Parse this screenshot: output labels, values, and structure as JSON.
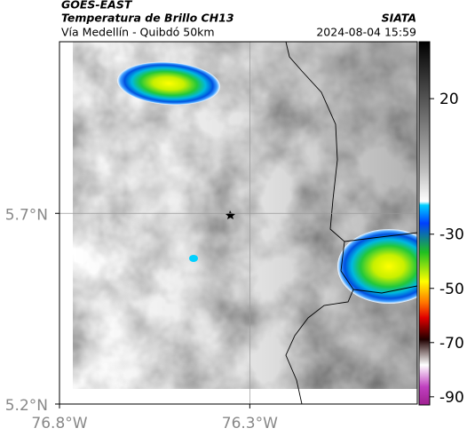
{
  "header": {
    "source": "GOES-EAST",
    "title": "Temperatura de Brillo CH13",
    "org": "SIATA",
    "subtitle": "Vía Medellín - Quibdó 50km",
    "timestamp": "2024-08-04 15:59"
  },
  "map": {
    "xlim": [
      -76.8,
      -75.86
    ],
    "ylim": [
      5.2,
      6.15
    ],
    "xticks": [
      {
        "value": -76.8,
        "label": "76.8°W"
      },
      {
        "value": -76.3,
        "label": "76.3°W"
      }
    ],
    "yticks": [
      {
        "value": 5.7,
        "label": "5.7°N"
      },
      {
        "value": 5.2,
        "label": "5.2°N"
      }
    ],
    "grid": true
  },
  "colorbar": {
    "lim": [
      -93,
      41
    ],
    "ticks": [
      20,
      -30,
      -50,
      -70,
      -90
    ]
  }
}
